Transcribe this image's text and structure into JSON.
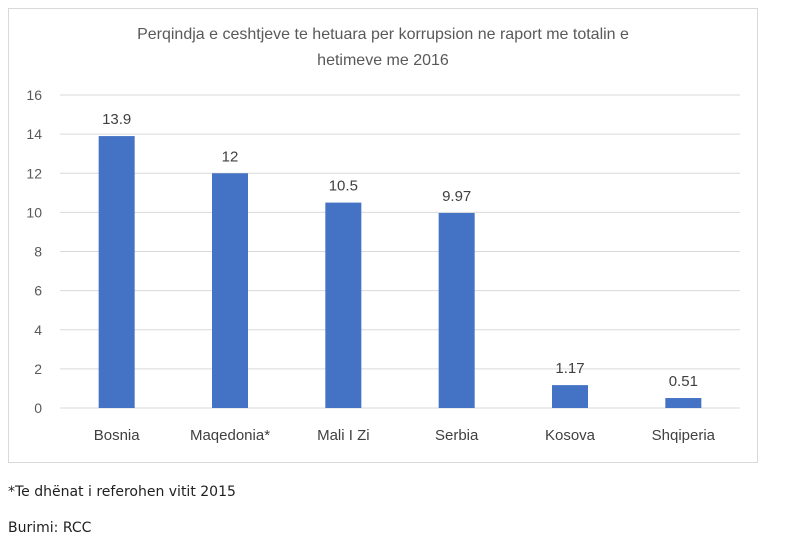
{
  "chart_data": {
    "type": "bar",
    "title_lines": [
      "Perqindja e ceshtjeve te hetuara per korrupsion ne raport me totalin e",
      "hetimeve me 2016"
    ],
    "categories": [
      "Bosnia",
      "Maqedonia*",
      "Mali I Zi",
      "Serbia",
      "Kosova",
      "Shqiperia"
    ],
    "values": [
      13.9,
      12,
      10.5,
      9.97,
      1.17,
      0.51
    ],
    "data_labels": [
      "13.9",
      "12",
      "10.5",
      "9.97",
      "1.17",
      "0.51"
    ],
    "ylim": [
      0,
      16
    ],
    "yticks": [
      0,
      2,
      4,
      6,
      8,
      10,
      12,
      14,
      16
    ],
    "grid": true,
    "legend": "none",
    "bar_color": "#4472c4",
    "grid_color": "#d9d9d9"
  },
  "notes": {
    "footnote": "*Te dhënat i referohen vitit 2015",
    "source": "Burimi: RCC"
  }
}
